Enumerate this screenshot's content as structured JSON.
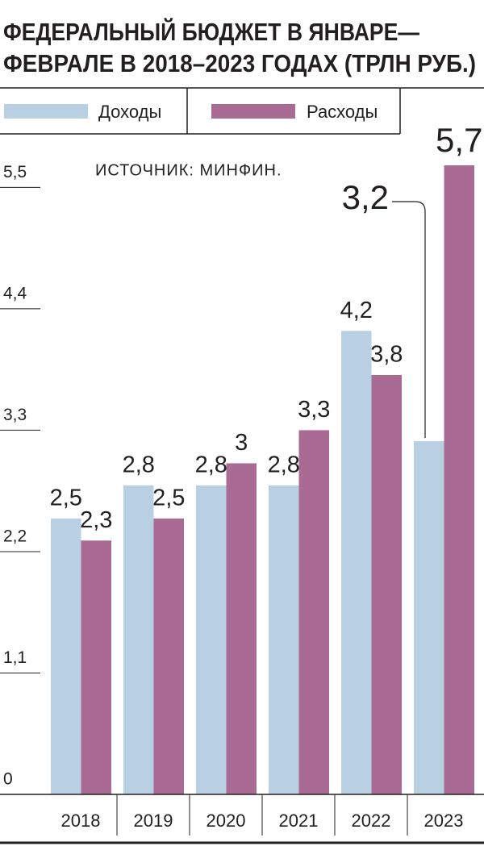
{
  "chart_data": {
    "type": "bar",
    "title": [
      "ФЕДЕРАЛЬНЫЙ БЮДЖЕТ В ЯНВАРЕ—",
      "ФЕВРАЛЕ В 2018–2023 ГОДАХ (ТРЛН РУБ.)"
    ],
    "annotation": "ИСТОЧНИК: МИНФИН.",
    "categories": [
      "2018",
      "2019",
      "2020",
      "2021",
      "2022",
      "2023"
    ],
    "series": [
      {
        "name": "Доходы",
        "color": "#b9cfe2",
        "values": [
          2.5,
          2.8,
          2.8,
          2.8,
          4.2,
          3.2
        ],
        "value_labels": [
          "2,5",
          "2,8",
          "2,8",
          "2,8",
          "4,2",
          "3,2"
        ]
      },
      {
        "name": "Расходы",
        "color": "#a96b93",
        "values": [
          2.3,
          2.5,
          3,
          3.3,
          3.8,
          5.7
        ],
        "value_labels": [
          "2,3",
          "2,5",
          "3",
          "3,3",
          "3,8",
          "5,7"
        ]
      }
    ],
    "ylim": [
      0,
      5.7
    ],
    "yticks": [
      0,
      {
        "value": 1.1,
        "label": "1,1"
      },
      {
        "value": 2.2,
        "label": "2,2"
      },
      {
        "value": 3.3,
        "label": "3,3"
      },
      {
        "value": 4.4,
        "label": "4,4"
      },
      {
        "value": 5.5,
        "label": "5,5"
      }
    ]
  }
}
